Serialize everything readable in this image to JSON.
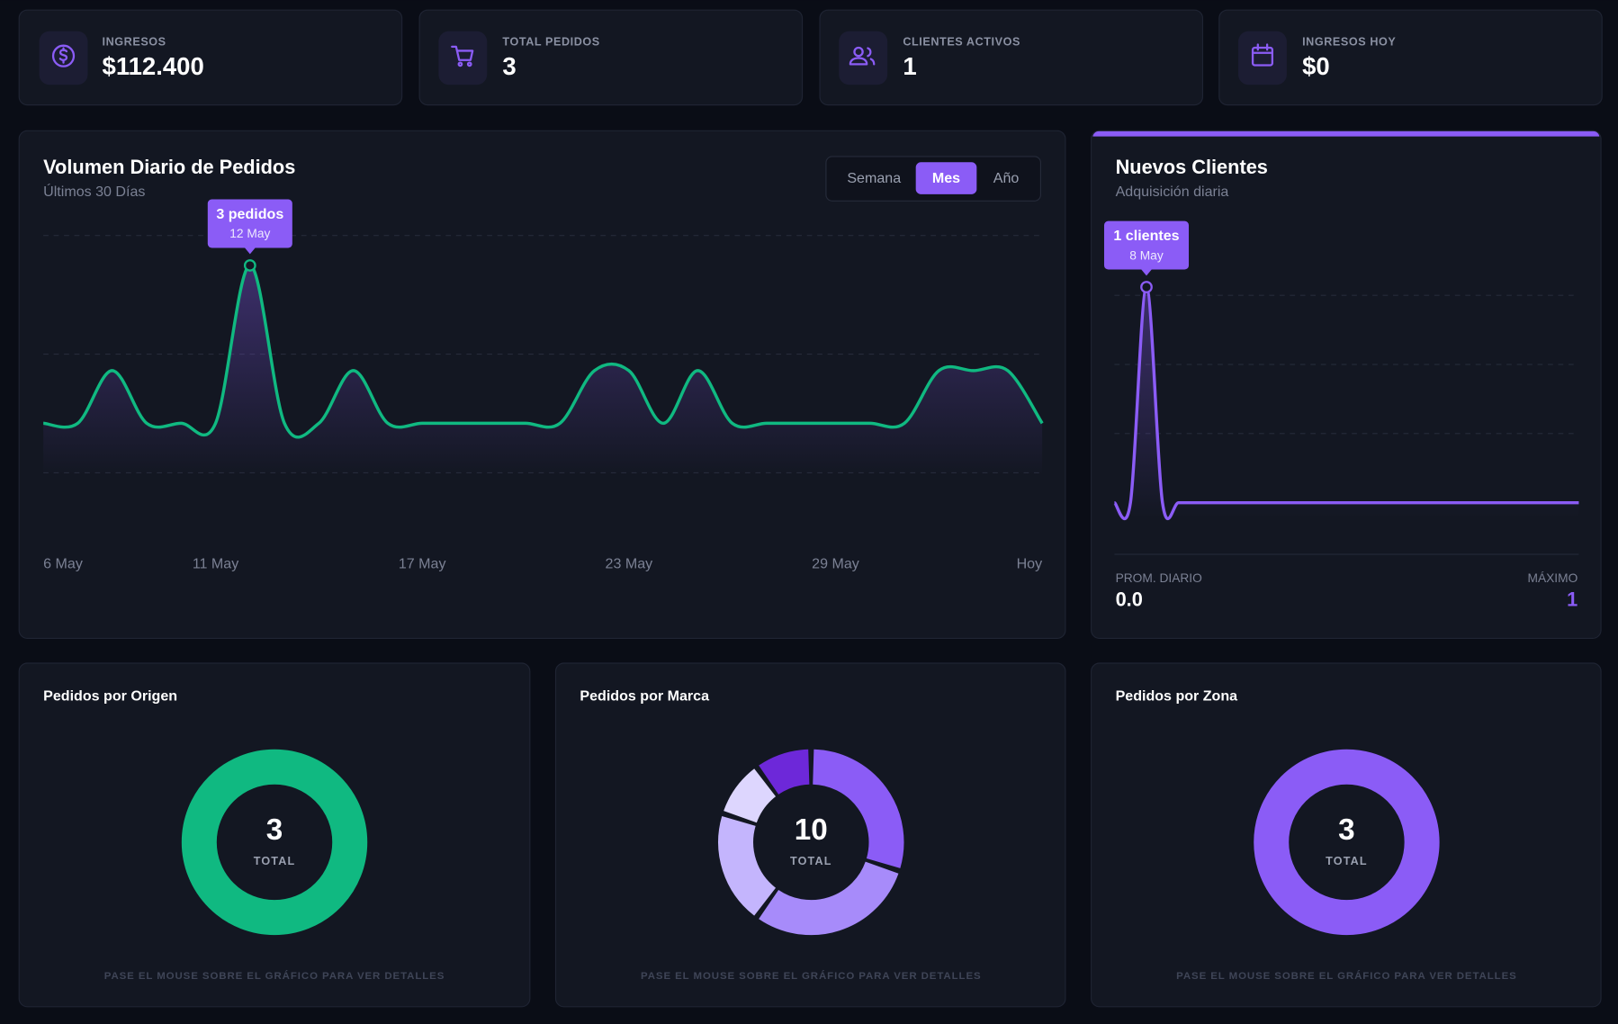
{
  "kpis": [
    {
      "label": "INGRESOS",
      "value": "$112.400"
    },
    {
      "label": "TOTAL PEDIDOS",
      "value": "3"
    },
    {
      "label": "CLIENTES ACTIVOS",
      "value": "1"
    },
    {
      "label": "INGRESOS HOY",
      "value": "$0"
    }
  ],
  "orders_chart": {
    "type": "line",
    "title": "Volumen Diario de Pedidos",
    "subtitle": "Últimos 30 Días",
    "periods": [
      "Semana",
      "Mes",
      "Año"
    ],
    "active_period": "Mes",
    "categories": [
      "6 May",
      null,
      null,
      null,
      null,
      "11 May",
      null,
      null,
      null,
      null,
      null,
      "17 May",
      null,
      null,
      null,
      null,
      null,
      "23 May",
      null,
      null,
      null,
      null,
      null,
      "29 May",
      null,
      null,
      null,
      null,
      null,
      "Hoy"
    ],
    "values": [
      0,
      0,
      1,
      0,
      0,
      0,
      3,
      0,
      0,
      1,
      0,
      0,
      0,
      0,
      0,
      0,
      1,
      1,
      0,
      1,
      0,
      0,
      0,
      0,
      0,
      0,
      1,
      1,
      1,
      0
    ],
    "color": "#10b981",
    "ylim": [
      -1,
      3.5
    ],
    "tooltip": {
      "title": "3 pedidos",
      "date": "12 May"
    }
  },
  "clients_chart": {
    "type": "line",
    "title": "Nuevos Clientes",
    "subtitle": "Adquisición diaria",
    "values": [
      0,
      0,
      1,
      0,
      0,
      0,
      0,
      0,
      0,
      0,
      0,
      0,
      0,
      0,
      0,
      0,
      0,
      0,
      0,
      0,
      0,
      0,
      0,
      0,
      0,
      0,
      0,
      0,
      0,
      0
    ],
    "color": "#8b5cf6",
    "ylim": [
      0,
      1
    ],
    "tooltip": {
      "title": "1 clientes",
      "date": "8 May"
    },
    "stats": {
      "avg_label": "PROM. DIARIO",
      "avg": "0.0",
      "max_label": "MÁXIMO",
      "max": "1"
    }
  },
  "donuts": [
    {
      "type": "donut",
      "title": "Pedidos por Origen",
      "values": [
        3
      ],
      "colors": [
        "#10b981"
      ],
      "total": 3,
      "total_label": "TOTAL",
      "hint": "PASE EL MOUSE SOBRE EL GRÁFICO PARA VER DETALLES"
    },
    {
      "type": "donut",
      "title": "Pedidos por Marca",
      "values": [
        3,
        3,
        2,
        1,
        1
      ],
      "colors": [
        "#8b5cf6",
        "#a78bfa",
        "#c4b5fd",
        "#ddd6fe",
        "#6d28d9"
      ],
      "total": 10,
      "total_label": "TOTAL",
      "hint": "PASE EL MOUSE SOBRE EL GRÁFICO PARA VER DETALLES"
    },
    {
      "type": "donut",
      "title": "Pedidos por Zona",
      "values": [
        3
      ],
      "colors": [
        "#8b5cf6"
      ],
      "total": 3,
      "total_label": "TOTAL",
      "hint": "PASE EL MOUSE SOBRE EL GRÁFICO PARA VER DETALLES"
    }
  ]
}
